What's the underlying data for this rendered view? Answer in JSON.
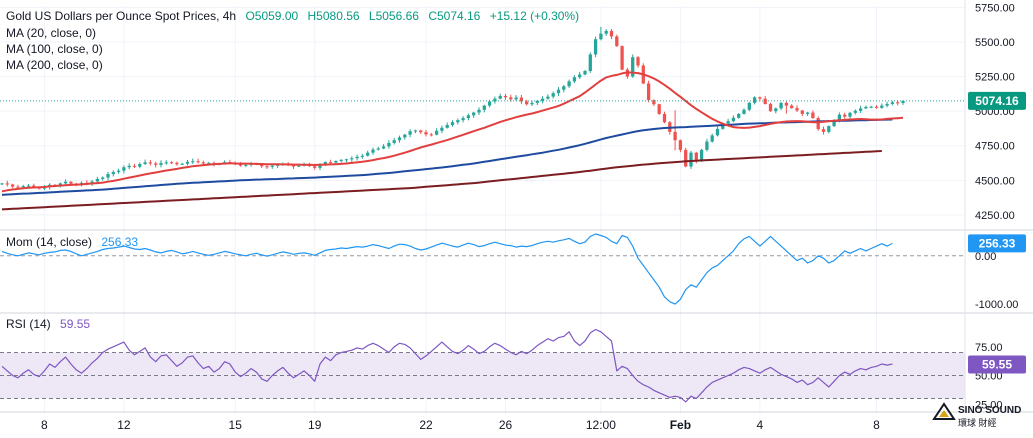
{
  "colors": {
    "up": "#26a69a",
    "down": "#ef5350",
    "ma20": "#e23f3f",
    "ma100": "#1e4ba0",
    "ma200": "#7b1d21",
    "mom": "#2196f3",
    "rsi": "#7e57c2",
    "rsi_band": "#ede7f6",
    "price_tag": "#089981",
    "mom_tag": "#2196f3",
    "rsi_tag": "#7e57c2",
    "grid": "#f0f3fa",
    "axis_text": "#131722"
  },
  "legend": {
    "title": "Gold US Dollars per Ounce Spot Prices, 4h",
    "open": "O5059.00",
    "high": "H5080.56",
    "low": "L5056.66",
    "close": "C5074.16",
    "change": "+15.12 (+0.30%)",
    "ma20": "MA (20, close, 0)",
    "ma100": "MA (100, close, 0)",
    "ma200": "MA (200, close, 0)"
  },
  "price_tag": "5074.16",
  "mom": {
    "label": "Mom (14, close)",
    "value": "256.33",
    "tag": "256.33"
  },
  "rsi": {
    "label": "RSI (14)",
    "value": "59.55",
    "tag": "59.55"
  },
  "watermark": {
    "brand": "SINO SOUND",
    "sub": "環球 財經"
  },
  "chart_data": {
    "type": "candlestick",
    "title": "Gold US Dollars per Ounce Spot Prices, 4h",
    "x_ticks": [
      {
        "label": "8",
        "i": 8
      },
      {
        "label": "12",
        "i": 23
      },
      {
        "label": "15",
        "i": 44
      },
      {
        "label": "19",
        "i": 59
      },
      {
        "label": "22",
        "i": 80
      },
      {
        "label": "26",
        "i": 95
      },
      {
        "label": "12:00",
        "i": 113
      },
      {
        "label": "Feb",
        "i": 128
      },
      {
        "label": "4",
        "i": 143
      },
      {
        "label": "8",
        "i": 165
      }
    ],
    "price_axis": {
      "ylim": [
        4170,
        5760
      ],
      "ticks": [
        "5750.00",
        "5500.00",
        "5250.00",
        "5000.00",
        "4750.00",
        "4500.00",
        "4250.00"
      ],
      "tick_values": [
        5750,
        5500,
        5250,
        5000,
        4750,
        4500,
        4250
      ],
      "last": 5074.16
    },
    "close": [
      4478,
      4470,
      4455,
      4450,
      4458,
      4462,
      4448,
      4440,
      4452,
      4468,
      4462,
      4478,
      4490,
      4476,
      4470,
      4482,
      4478,
      4492,
      4510,
      4520,
      4545,
      4560,
      4570,
      4595,
      4605,
      4598,
      4618,
      4630,
      4622,
      4612,
      4625,
      4630,
      4626,
      4616,
      4620,
      4634,
      4638,
      4630,
      4622,
      4626,
      4614,
      4620,
      4632,
      4628,
      4615,
      4606,
      4612,
      4620,
      4616,
      4602,
      4598,
      4606,
      4612,
      4618,
      4608,
      4600,
      4606,
      4612,
      4602,
      4590,
      4618,
      4632,
      4628,
      4640,
      4648,
      4652,
      4660,
      4670,
      4678,
      4700,
      4722,
      4730,
      4745,
      4770,
      4790,
      4810,
      4830,
      4855,
      4860,
      4848,
      4832,
      4830,
      4858,
      4880,
      4900,
      4920,
      4935,
      4950,
      4970,
      4990,
      5010,
      5040,
      5070,
      5090,
      5110,
      5100,
      5085,
      5098,
      5070,
      5050,
      5060,
      5075,
      5090,
      5105,
      5130,
      5155,
      5180,
      5215,
      5245,
      5265,
      5290,
      5410,
      5520,
      5560,
      5580,
      5540,
      5470,
      5300,
      5250,
      5390,
      5330,
      5200,
      5080,
      5050,
      4980,
      4920,
      4850,
      4790,
      4720,
      4600,
      4700,
      4640,
      4720,
      4780,
      4825,
      4872,
      4910,
      4928,
      4952,
      4980,
      5010,
      5060,
      5100,
      5090,
      5052,
      5000,
      5020,
      5060,
      5040,
      5022,
      5005,
      4980,
      4990,
      4950,
      4870,
      4850,
      4892,
      4930,
      4975,
      4960,
      4988,
      5002,
      5020,
      5030,
      5032,
      5024,
      5040,
      5052,
      5064,
      5059,
      5074
    ],
    "ma20": [
      4420,
      4428,
      4434,
      4438,
      4443,
      4446,
      4448,
      4450,
      4452,
      4456,
      4459,
      4462,
      4465,
      4467,
      4469,
      4471,
      4474,
      4477,
      4480,
      4484,
      4490,
      4496,
      4503,
      4512,
      4520,
      4527,
      4535,
      4543,
      4550,
      4557,
      4564,
      4571,
      4577,
      4583,
      4590,
      4596,
      4602,
      4606,
      4610,
      4614,
      4617,
      4619,
      4621,
      4623,
      4622,
      4621,
      4621,
      4620,
      4619,
      4618,
      4617,
      4617,
      4616,
      4615,
      4615,
      4614,
      4614,
      4613,
      4612,
      4611,
      4612,
      4614,
      4615,
      4617,
      4619,
      4622,
      4626,
      4630,
      4634,
      4640,
      4646,
      4654,
      4661,
      4669,
      4678,
      4689,
      4700,
      4712,
      4725,
      4737,
      4748,
      4758,
      4769,
      4780,
      4791,
      4804,
      4816,
      4829,
      4842,
      4855,
      4868,
      4880,
      4894,
      4908,
      4922,
      4934,
      4945,
      4956,
      4966,
      4975,
      4983,
      4993,
      5004,
      5015,
      5026,
      5038,
      5054,
      5072,
      5090,
      5108,
      5135,
      5163,
      5193,
      5221,
      5244,
      5255,
      5262,
      5273,
      5280,
      5279,
      5275,
      5266,
      5253,
      5236,
      5215,
      5190,
      5162,
      5132,
      5104,
      5073,
      5043,
      5016,
      4992,
      4968,
      4945,
      4926,
      4909,
      4896,
      4885,
      4881,
      4879,
      4881,
      4886,
      4892,
      4900,
      4908,
      4915,
      4921,
      4925,
      4927,
      4928,
      4927,
      4924,
      4920,
      4920,
      4923,
      4928,
      4931,
      4934,
      4937,
      4940,
      4942,
      4943,
      4941,
      4939,
      4939,
      4940,
      4944,
      4947,
      4949,
      4952
    ],
    "ma100": [
      4395,
      4398,
      4400,
      4402,
      4404,
      4405,
      4407,
      4409,
      4411,
      4413,
      4415,
      4417,
      4419,
      4421,
      4423,
      4425,
      4427,
      4429,
      4431,
      4433,
      4436,
      4439,
      4442,
      4445,
      4448,
      4451,
      4454,
      4457,
      4460,
      4463,
      4466,
      4469,
      4472,
      4475,
      4477,
      4480,
      4482,
      4484,
      4486,
      4488,
      4490,
      4492,
      4494,
      4496,
      4498,
      4500,
      4502,
      4503,
      4505,
      4506,
      4508,
      4509,
      4510,
      4512,
      4513,
      4514,
      4516,
      4517,
      4518,
      4520,
      4522,
      4524,
      4526,
      4528,
      4530,
      4532,
      4534,
      4536,
      4538,
      4541,
      4544,
      4547,
      4550,
      4553,
      4557,
      4561,
      4565,
      4569,
      4573,
      4577,
      4581,
      4585,
      4589,
      4593,
      4597,
      4602,
      4607,
      4612,
      4617,
      4622,
      4628,
      4634,
      4640,
      4646,
      4652,
      4658,
      4664,
      4670,
      4676,
      4682,
      4688,
      4694,
      4700,
      4707,
      4714,
      4721,
      4729,
      4737,
      4745,
      4754,
      4764,
      4774,
      4785,
      4796,
      4806,
      4815,
      4823,
      4831,
      4840,
      4849,
      4856,
      4862,
      4867,
      4871,
      4875,
      4878,
      4880,
      4882,
      4884,
      4885,
      4887,
      4889,
      4891,
      4893,
      4895,
      4897,
      4899,
      4901,
      4903,
      4905,
      4908,
      4910,
      4911,
      4912,
      4913,
      4915,
      4917,
      4918,
      4919,
      4920,
      4921,
      4922,
      4924,
      4925,
      4926,
      4927,
      4928,
      4929,
      4930,
      4931,
      4932,
      4933,
      4934,
      4935,
      4936,
      4937,
      4938,
      4939,
      4940
    ],
    "ma200": [
      4290,
      4292,
      4294,
      4296,
      4298,
      4300,
      4302,
      4304,
      4306,
      4308,
      4310,
      4312,
      4314,
      4316,
      4318,
      4320,
      4322,
      4324,
      4326,
      4328,
      4330,
      4332,
      4334,
      4336,
      4338,
      4340,
      4342,
      4344,
      4346,
      4348,
      4350,
      4352,
      4354,
      4356,
      4358,
      4360,
      4362,
      4364,
      4366,
      4368,
      4370,
      4372,
      4374,
      4376,
      4378,
      4380,
      4382,
      4384,
      4386,
      4388,
      4390,
      4392,
      4394,
      4396,
      4398,
      4400,
      4402,
      4404,
      4406,
      4408,
      4410,
      4412,
      4414,
      4416,
      4418,
      4420,
      4422,
      4424,
      4426,
      4428,
      4430,
      4432,
      4434,
      4436,
      4438,
      4440,
      4442,
      4444,
      4447,
      4450,
      4453,
      4456,
      4459,
      4462,
      4465,
      4468,
      4471,
      4474,
      4477,
      4480,
      4484,
      4488,
      4492,
      4496,
      4500,
      4504,
      4508,
      4512,
      4516,
      4520,
      4524,
      4528,
      4532,
      4536,
      4540,
      4544,
      4548,
      4552,
      4556,
      4560,
      4565,
      4570,
      4575,
      4580,
      4585,
      4590,
      4594,
      4598,
      4602,
      4606,
      4610,
      4614,
      4617,
      4620,
      4623,
      4626,
      4629,
      4632,
      4635,
      4638,
      4640,
      4642,
      4644,
      4646,
      4648,
      4650,
      4652,
      4654,
      4656,
      4658,
      4660,
      4662,
      4664,
      4666,
      4668,
      4670,
      4672,
      4674,
      4676,
      4678,
      4680,
      4682,
      4684,
      4686,
      4688,
      4690,
      4692,
      4694,
      4696,
      4698,
      4700,
      4702,
      4704,
      4706,
      4708,
      4710,
      4712
    ],
    "momentum": {
      "ylim": [
        -1080,
        450
      ],
      "ticks": [
        "0.00",
        "-1000.00"
      ],
      "tick_values": [
        0,
        -1000
      ],
      "last": 256.33,
      "values": [
        90,
        50,
        20,
        0,
        30,
        60,
        40,
        20,
        50,
        70,
        80,
        110,
        120,
        90,
        40,
        0,
        30,
        60,
        90,
        130,
        150,
        160,
        180,
        200,
        170,
        140,
        130,
        150,
        120,
        80,
        60,
        90,
        110,
        80,
        40,
        60,
        90,
        60,
        30,
        10,
        30,
        60,
        90,
        70,
        40,
        20,
        0,
        30,
        50,
        20,
        -10,
        20,
        50,
        80,
        60,
        30,
        50,
        60,
        40,
        10,
        60,
        110,
        130,
        140,
        160,
        150,
        170,
        190,
        180,
        200,
        230,
        210,
        180,
        150,
        200,
        240,
        230,
        200,
        150,
        120,
        140,
        180,
        220,
        260,
        230,
        200,
        180,
        220,
        260,
        230,
        190,
        210,
        250,
        280,
        250,
        220,
        210,
        180,
        200,
        190,
        210,
        250,
        280,
        300,
        280,
        310,
        330,
        360,
        300,
        250,
        280,
        400,
        450,
        420,
        380,
        300,
        250,
        420,
        380,
        200,
        -50,
        -200,
        -350,
        -500,
        -650,
        -850,
        -950,
        -1000,
        -900,
        -700,
        -600,
        -650,
        -500,
        -350,
        -250,
        -200,
        -100,
        0,
        100,
        250,
        350,
        400,
        300,
        200,
        300,
        400,
        300,
        200,
        100,
        0,
        -100,
        -50,
        -150,
        -100,
        0,
        -50,
        -150,
        -100,
        0,
        100,
        50,
        100,
        150,
        100,
        150,
        200,
        250,
        200,
        256
      ]
    },
    "rsi_series": {
      "ylim": [
        20,
        100
      ],
      "ticks": [
        "75.00",
        "50.00",
        "25.00"
      ],
      "tick_values": [
        75,
        50,
        25
      ],
      "bands": [
        30,
        50,
        70
      ],
      "last": 59.55,
      "values": [
        58,
        54,
        50,
        48,
        52,
        55,
        51,
        49,
        54,
        60,
        57,
        62,
        66,
        60,
        55,
        52,
        56,
        61,
        65,
        70,
        73,
        75,
        77,
        79,
        72,
        68,
        71,
        74,
        66,
        62,
        67,
        68,
        63,
        58,
        61,
        66,
        67,
        61,
        56,
        58,
        53,
        56,
        62,
        60,
        53,
        49,
        52,
        56,
        53,
        47,
        45,
        50,
        54,
        57,
        52,
        48,
        51,
        54,
        50,
        45,
        60,
        66,
        63,
        68,
        70,
        71,
        72,
        74,
        73,
        76,
        78,
        76,
        73,
        70,
        75,
        78,
        77,
        74,
        69,
        64,
        67,
        71,
        75,
        79,
        75,
        71,
        69,
        72,
        76,
        73,
        69,
        71,
        75,
        78,
        76,
        73,
        70,
        68,
        71,
        69,
        72,
        76,
        79,
        82,
        80,
        83,
        84,
        88,
        80,
        76,
        80,
        87,
        90,
        88,
        84,
        80,
        54,
        58,
        56,
        50,
        45,
        42,
        40,
        37,
        35,
        33,
        31,
        32,
        31,
        27,
        32,
        30,
        35,
        40,
        44,
        46,
        48,
        50,
        52,
        55,
        57,
        56,
        54,
        52,
        55,
        57,
        54,
        51,
        49,
        47,
        44,
        46,
        42,
        44,
        48,
        44,
        40,
        45,
        50,
        53,
        51,
        54,
        56,
        55,
        57,
        58,
        60,
        59,
        60
      ]
    }
  }
}
